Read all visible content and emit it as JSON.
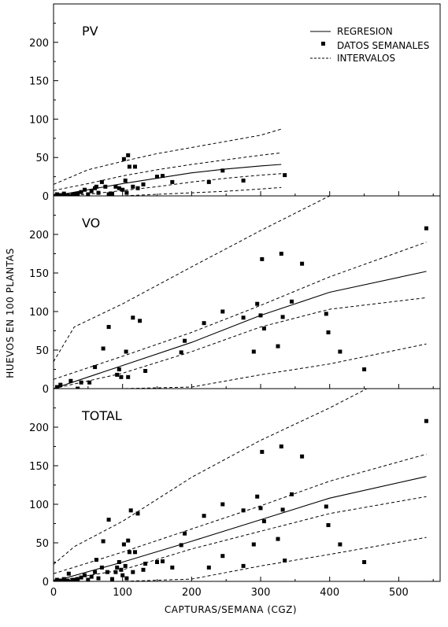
{
  "chart_data": [
    {
      "type": "scatter",
      "panel_label": "PV",
      "xlim": [
        0,
        560
      ],
      "ylim": [
        0,
        250
      ],
      "yticks": [
        0,
        50,
        100,
        150,
        200
      ],
      "legend": {
        "placement": "top-right",
        "entries": [
          {
            "label": "REGRESION",
            "style": "solid"
          },
          {
            "label": "DATOS SEMANALES",
            "style": "marker"
          },
          {
            "label": "INTERVALOS",
            "style": "dashed"
          }
        ]
      },
      "points": [
        [
          2,
          0
        ],
        [
          5,
          2
        ],
        [
          8,
          0
        ],
        [
          10,
          1
        ],
        [
          12,
          0
        ],
        [
          15,
          3
        ],
        [
          18,
          0
        ],
        [
          20,
          1
        ],
        [
          25,
          0
        ],
        [
          28,
          1
        ],
        [
          30,
          2
        ],
        [
          35,
          3
        ],
        [
          40,
          5
        ],
        [
          45,
          8
        ],
        [
          50,
          2
        ],
        [
          55,
          6
        ],
        [
          60,
          10
        ],
        [
          62,
          12
        ],
        [
          65,
          4
        ],
        [
          70,
          18
        ],
        [
          75,
          12
        ],
        [
          80,
          2
        ],
        [
          85,
          3
        ],
        [
          90,
          12
        ],
        [
          95,
          10
        ],
        [
          100,
          8
        ],
        [
          102,
          48
        ],
        [
          104,
          20
        ],
        [
          106,
          4
        ],
        [
          108,
          53
        ],
        [
          110,
          38
        ],
        [
          115,
          12
        ],
        [
          118,
          38
        ],
        [
          122,
          10
        ],
        [
          130,
          15
        ],
        [
          150,
          25
        ],
        [
          158,
          26
        ],
        [
          172,
          18
        ],
        [
          225,
          18
        ],
        [
          245,
          33
        ],
        [
          275,
          20
        ],
        [
          335,
          27
        ]
      ],
      "regression": [
        [
          0,
          0
        ],
        [
          50,
          8
        ],
        [
          100,
          16
        ],
        [
          150,
          23
        ],
        [
          200,
          30
        ],
        [
          250,
          35
        ],
        [
          300,
          39
        ],
        [
          330,
          41
        ]
      ],
      "intervals": [
        [
          [
            0,
            7
          ],
          [
            50,
            16
          ],
          [
            100,
            26
          ],
          [
            150,
            34
          ],
          [
            200,
            41
          ],
          [
            250,
            47
          ],
          [
            300,
            53
          ],
          [
            330,
            56
          ]
        ],
        [
          [
            0,
            0
          ],
          [
            50,
            2
          ],
          [
            100,
            7
          ],
          [
            150,
            12
          ],
          [
            200,
            18
          ],
          [
            250,
            23
          ],
          [
            300,
            27
          ],
          [
            330,
            29
          ]
        ],
        [
          [
            0,
            15
          ],
          [
            50,
            34
          ],
          [
            100,
            45
          ],
          [
            150,
            55
          ],
          [
            200,
            63
          ],
          [
            250,
            71
          ],
          [
            300,
            79
          ],
          [
            330,
            87
          ]
        ],
        [
          [
            0,
            0
          ],
          [
            100,
            0
          ],
          [
            150,
            2
          ],
          [
            200,
            4
          ],
          [
            250,
            6
          ],
          [
            300,
            9
          ],
          [
            330,
            11
          ]
        ]
      ]
    },
    {
      "type": "scatter",
      "panel_label": "VO",
      "xlim": [
        0,
        560
      ],
      "ylim": [
        0,
        250
      ],
      "yticks": [
        0,
        50,
        100,
        150,
        200
      ],
      "points": [
        [
          5,
          2
        ],
        [
          10,
          5
        ],
        [
          25,
          10
        ],
        [
          35,
          0
        ],
        [
          40,
          8
        ],
        [
          52,
          8
        ],
        [
          60,
          28
        ],
        [
          72,
          52
        ],
        [
          80,
          80
        ],
        [
          92,
          18
        ],
        [
          95,
          25
        ],
        [
          98,
          15
        ],
        [
          105,
          48
        ],
        [
          108,
          15
        ],
        [
          115,
          92
        ],
        [
          125,
          88
        ],
        [
          133,
          23
        ],
        [
          185,
          47
        ],
        [
          190,
          62
        ],
        [
          218,
          85
        ],
        [
          245,
          100
        ],
        [
          275,
          92
        ],
        [
          290,
          48
        ],
        [
          295,
          110
        ],
        [
          300,
          95
        ],
        [
          302,
          168
        ],
        [
          305,
          78
        ],
        [
          325,
          55
        ],
        [
          330,
          175
        ],
        [
          332,
          93
        ],
        [
          345,
          113
        ],
        [
          360,
          162
        ],
        [
          395,
          97
        ],
        [
          398,
          73
        ],
        [
          415,
          48
        ],
        [
          450,
          25
        ],
        [
          540,
          208
        ]
      ],
      "regression": [
        [
          0,
          0
        ],
        [
          100,
          30
        ],
        [
          200,
          60
        ],
        [
          300,
          95
        ],
        [
          400,
          125
        ],
        [
          540,
          152
        ]
      ],
      "intervals": [
        [
          [
            0,
            12
          ],
          [
            100,
            42
          ],
          [
            200,
            73
          ],
          [
            300,
            108
          ],
          [
            400,
            145
          ],
          [
            540,
            190
          ]
        ],
        [
          [
            0,
            0
          ],
          [
            100,
            20
          ],
          [
            200,
            48
          ],
          [
            300,
            80
          ],
          [
            400,
            103
          ],
          [
            540,
            118
          ]
        ],
        [
          [
            0,
            35
          ],
          [
            30,
            80
          ],
          [
            100,
            110
          ],
          [
            200,
            158
          ],
          [
            300,
            205
          ],
          [
            400,
            250
          ],
          [
            440,
            262
          ]
        ],
        [
          [
            0,
            0
          ],
          [
            100,
            0
          ],
          [
            200,
            2
          ],
          [
            300,
            18
          ],
          [
            400,
            32
          ],
          [
            540,
            58
          ]
        ]
      ]
    },
    {
      "type": "scatter",
      "panel_label": "TOTAL",
      "xlim": [
        0,
        560
      ],
      "ylim": [
        0,
        250
      ],
      "yticks": [
        0,
        50,
        100,
        150,
        200
      ],
      "xticks": [
        0,
        100,
        200,
        300,
        400,
        500
      ],
      "xlabel": "CAPTURAS/SEMANA (CGZ)",
      "points": [
        [
          2,
          0
        ],
        [
          5,
          2
        ],
        [
          8,
          0
        ],
        [
          10,
          1
        ],
        [
          12,
          0
        ],
        [
          15,
          3
        ],
        [
          18,
          0
        ],
        [
          20,
          1
        ],
        [
          22,
          10
        ],
        [
          25,
          0
        ],
        [
          28,
          1
        ],
        [
          30,
          2
        ],
        [
          35,
          3
        ],
        [
          40,
          5
        ],
        [
          45,
          8
        ],
        [
          50,
          2
        ],
        [
          55,
          6
        ],
        [
          60,
          12
        ],
        [
          62,
          28
        ],
        [
          65,
          4
        ],
        [
          70,
          18
        ],
        [
          72,
          52
        ],
        [
          78,
          12
        ],
        [
          80,
          80
        ],
        [
          85,
          3
        ],
        [
          90,
          12
        ],
        [
          92,
          18
        ],
        [
          95,
          25
        ],
        [
          98,
          15
        ],
        [
          100,
          8
        ],
        [
          102,
          48
        ],
        [
          104,
          20
        ],
        [
          106,
          4
        ],
        [
          108,
          53
        ],
        [
          110,
          38
        ],
        [
          112,
          92
        ],
        [
          115,
          12
        ],
        [
          118,
          38
        ],
        [
          122,
          88
        ],
        [
          130,
          15
        ],
        [
          133,
          23
        ],
        [
          150,
          25
        ],
        [
          158,
          26
        ],
        [
          172,
          18
        ],
        [
          185,
          47
        ],
        [
          190,
          62
        ],
        [
          218,
          85
        ],
        [
          225,
          18
        ],
        [
          245,
          100
        ],
        [
          245,
          33
        ],
        [
          275,
          20
        ],
        [
          275,
          92
        ],
        [
          290,
          48
        ],
        [
          295,
          110
        ],
        [
          300,
          95
        ],
        [
          302,
          168
        ],
        [
          305,
          78
        ],
        [
          325,
          55
        ],
        [
          330,
          175
        ],
        [
          332,
          93
        ],
        [
          335,
          27
        ],
        [
          345,
          113
        ],
        [
          360,
          162
        ],
        [
          395,
          97
        ],
        [
          398,
          73
        ],
        [
          415,
          48
        ],
        [
          450,
          25
        ],
        [
          540,
          208
        ]
      ],
      "regression": [
        [
          0,
          0
        ],
        [
          100,
          25
        ],
        [
          200,
          52
        ],
        [
          300,
          80
        ],
        [
          400,
          108
        ],
        [
          540,
          136
        ]
      ],
      "intervals": [
        [
          [
            0,
            10
          ],
          [
            100,
            38
          ],
          [
            200,
            68
          ],
          [
            300,
            98
          ],
          [
            400,
            130
          ],
          [
            540,
            165
          ]
        ],
        [
          [
            0,
            0
          ],
          [
            100,
            15
          ],
          [
            200,
            42
          ],
          [
            300,
            65
          ],
          [
            400,
            88
          ],
          [
            540,
            110
          ]
        ],
        [
          [
            0,
            22
          ],
          [
            30,
            45
          ],
          [
            100,
            78
          ],
          [
            200,
            135
          ],
          [
            300,
            183
          ],
          [
            400,
            225
          ],
          [
            480,
            262
          ]
        ],
        [
          [
            0,
            0
          ],
          [
            100,
            0
          ],
          [
            200,
            3
          ],
          [
            300,
            20
          ],
          [
            400,
            35
          ],
          [
            540,
            57
          ]
        ]
      ]
    }
  ],
  "shared_ylabel": "HUEVOS EN 100 PLANTAS"
}
